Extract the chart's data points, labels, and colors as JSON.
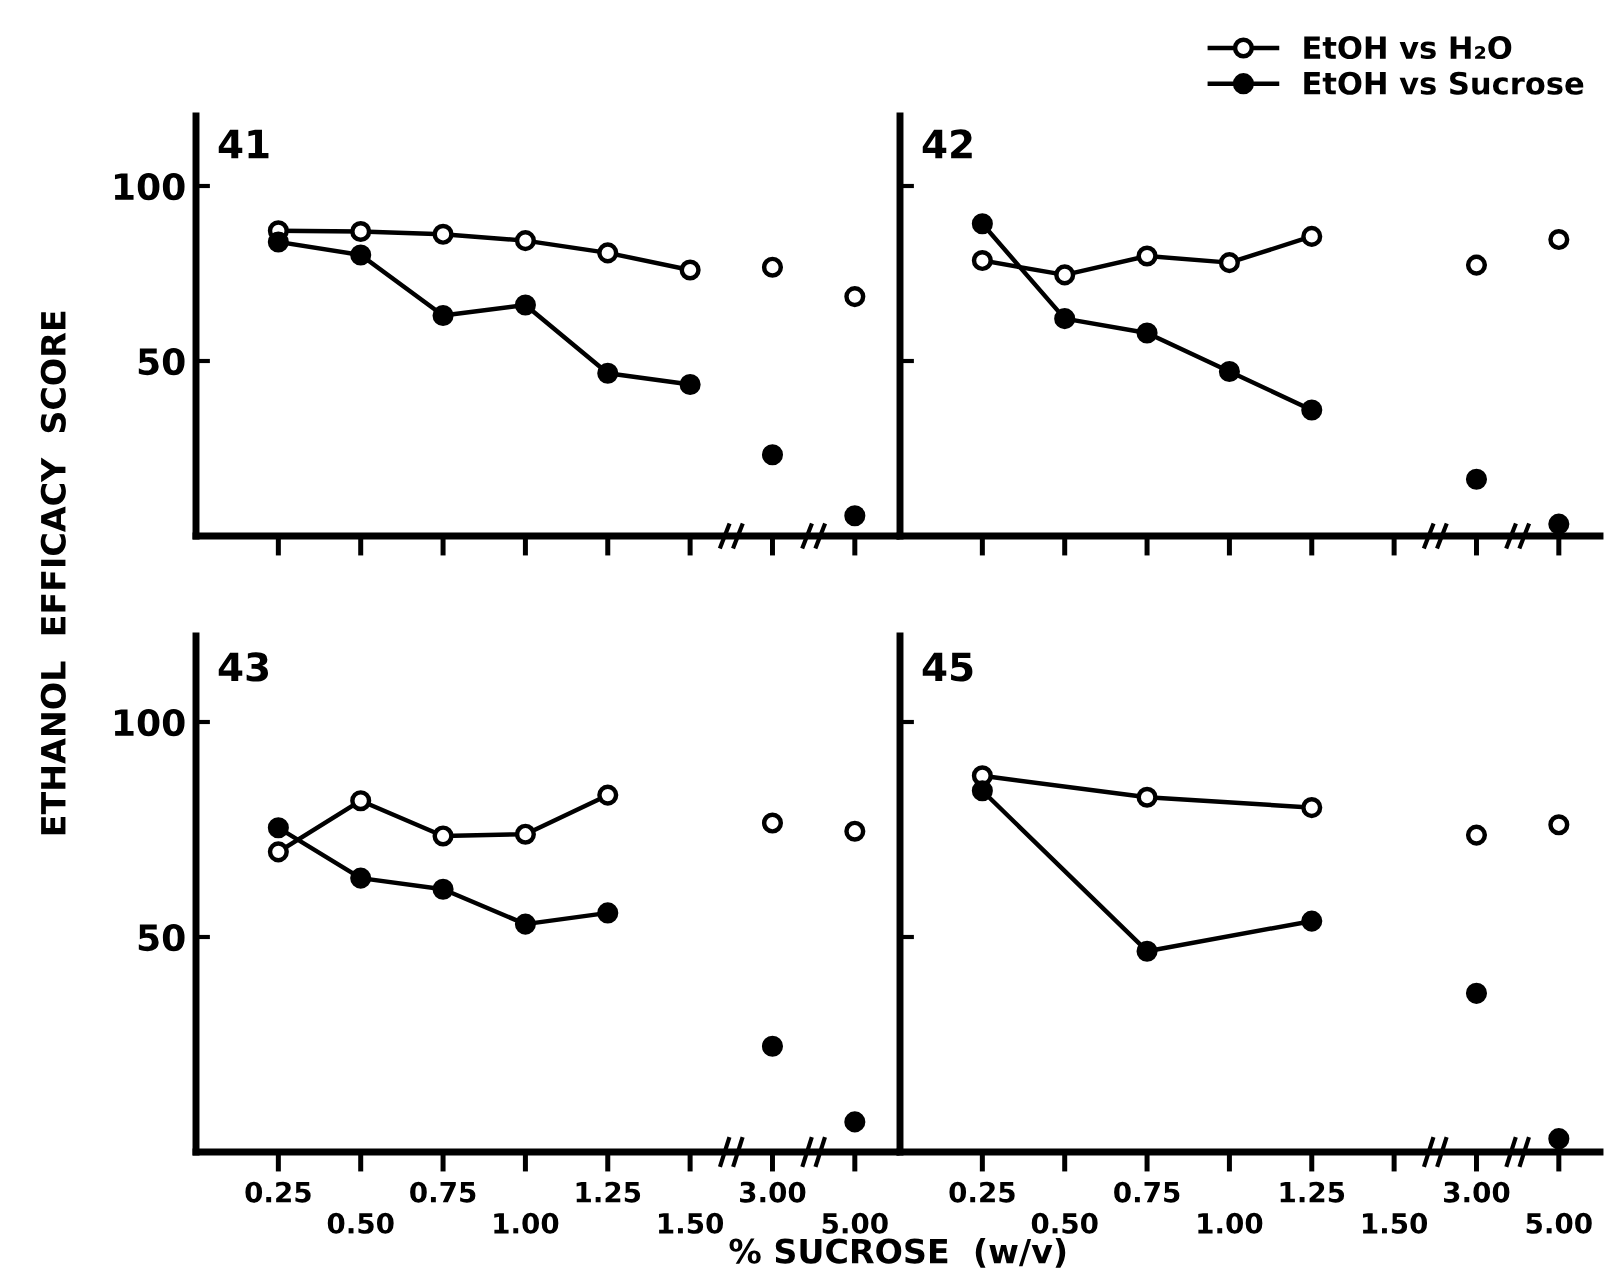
{
  "chart_data": [
    {
      "type": "line",
      "title": "41",
      "ylabel": "ETHANOL  EFFICACY  SCORE",
      "categories": [
        "0.25",
        "0.50",
        "0.75",
        "1.00",
        "1.25",
        "1.50",
        "3.00",
        "5.00"
      ],
      "ylim": [
        0,
        120
      ],
      "yticks": [
        50,
        100
      ],
      "tick_labels": "y",
      "marker": "circle",
      "grid": false,
      "series": [
        {
          "color": "#000000",
          "colors": [
            "#ffffff",
            "#ffffff",
            "#ffffff",
            "#ffffff",
            "#ffffff",
            "#ffffff"
          ],
          "x": [
            "0.25",
            "0.50",
            "0.75",
            "1.00",
            "1.25",
            "1.50"
          ],
          "values": [
            87.2,
            87,
            86.2,
            84.4,
            80.9,
            76.0
          ]
        },
        {
          "color": "#000000",
          "colors": [
            "#000000",
            "#000000",
            "#000000",
            "#000000",
            "#000000",
            "#000000"
          ],
          "x": [
            "0.25",
            "0.50",
            "0.75",
            "1.00",
            "1.25",
            "1.50"
          ],
          "values": [
            84,
            80.3,
            63,
            66,
            46.5,
            43.3
          ]
        },
        {
          "type": "scatter",
          "color": "#000000",
          "colors": [
            "#ffffff",
            "#ffffff"
          ],
          "x": [
            "3.00",
            "5.00"
          ],
          "values": [
            76.8,
            68.4
          ]
        },
        {
          "type": "scatter",
          "color": "#000000",
          "colors": [
            "#000000",
            "#000000"
          ],
          "x": [
            "3.00",
            "5.00"
          ],
          "values": [
            23.2,
            5.8
          ]
        }
      ]
    },
    {
      "type": "line",
      "title": "42",
      "categories": [
        "0.25",
        "0.50",
        "0.75",
        "1.00",
        "1.25",
        "1.50",
        "3.00",
        "5.00"
      ],
      "ylim": [
        0,
        120
      ],
      "yticks": [
        50,
        100
      ],
      "tick_labels": false,
      "marker": "circle",
      "grid": false,
      "legend": "top right",
      "series": [
        {
          "name": "EtOH vs H₂O",
          "color": "#000000",
          "colors": [
            "#ffffff",
            "#ffffff",
            "#ffffff",
            "#ffffff",
            "#ffffff"
          ],
          "x": [
            "0.25",
            "0.50",
            "0.75",
            "1.00",
            "1.25"
          ],
          "values": [
            78.7,
            74.6,
            80,
            78.1,
            85.6
          ]
        },
        {
          "name": "EtOH vs Sucrose",
          "color": "#000000",
          "colors": [
            "#000000",
            "#000000",
            "#000000",
            "#000000",
            "#000000"
          ],
          "x": [
            "0.25",
            "0.50",
            "0.75",
            "1.00",
            "1.25"
          ],
          "values": [
            89.2,
            62.1,
            58,
            47,
            36
          ]
        },
        {
          "type": "scatter",
          "color": "#000000",
          "colors": [
            "#ffffff",
            "#ffffff"
          ],
          "x": [
            "3.00",
            "5.00"
          ],
          "values": [
            77.4,
            84.7
          ]
        },
        {
          "type": "scatter",
          "color": "#000000",
          "colors": [
            "#000000",
            "#000000"
          ],
          "x": [
            "3.00",
            "5.00"
          ],
          "values": [
            16.2,
            3.4
          ]
        }
      ]
    },
    {
      "type": "line",
      "title": "43",
      "xlabel": "% SUCROSE  (w/v)",
      "categories": [
        "0.25",
        "0.50",
        "0.75",
        "1.00",
        "1.25",
        "1.50",
        "3.00",
        "5.00"
      ],
      "ylim": [
        0,
        120
      ],
      "yticks": [
        50,
        100
      ],
      "marker": "circle",
      "grid": false,
      "series": [
        {
          "color": "#000000",
          "colors": [
            "#ffffff",
            "#ffffff",
            "#ffffff",
            "#ffffff",
            "#ffffff"
          ],
          "x": [
            "0.25",
            "0.50",
            "0.75",
            "1.00",
            "1.25"
          ],
          "values": [
            69.8,
            81.7,
            73.5,
            73.9,
            83
          ]
        },
        {
          "color": "#000000",
          "colors": [
            "#000000",
            "#000000",
            "#000000",
            "#000000",
            "#000000"
          ],
          "x": [
            "0.25",
            "0.50",
            "0.75",
            "1.00",
            "1.25"
          ],
          "values": [
            75.4,
            63.7,
            61.1,
            53,
            55.6
          ]
        },
        {
          "type": "scatter",
          "color": "#000000",
          "colors": [
            "#ffffff",
            "#ffffff"
          ],
          "x": [
            "3.00",
            "5.00"
          ],
          "values": [
            76.5,
            74.6
          ]
        },
        {
          "type": "scatter",
          "color": "#000000",
          "colors": [
            "#000000",
            "#000000"
          ],
          "x": [
            "3.00",
            "5.00"
          ],
          "values": [
            24.6,
            7.0
          ]
        }
      ]
    },
    {
      "type": "line",
      "title": "45",
      "categories": [
        "0.25",
        "0.50",
        "0.75",
        "1.00",
        "1.25",
        "1.50",
        "3.00",
        "5.00"
      ],
      "ylim": [
        0,
        120
      ],
      "yticks": [
        50,
        100
      ],
      "tick_labels": "x",
      "marker": "circle",
      "grid": false,
      "series": [
        {
          "color": "#000000",
          "colors": [
            "#ffffff",
            "#ffffff",
            "#ffffff"
          ],
          "x": [
            "0.25",
            "0.75",
            "1.25"
          ],
          "values": [
            87.5,
            82.5,
            80.1
          ]
        },
        {
          "color": "#000000",
          "colors": [
            "#000000",
            "#000000",
            "#000000"
          ],
          "x": [
            "0.25",
            "0.75",
            "1.25"
          ],
          "values": [
            84,
            46.7,
            53.7
          ]
        },
        {
          "type": "scatter",
          "color": "#000000",
          "colors": [
            "#ffffff",
            "#ffffff"
          ],
          "x": [
            "3.00",
            "5.00"
          ],
          "values": [
            73.7,
            76.1
          ]
        },
        {
          "type": "scatter",
          "color": "#000000",
          "colors": [
            "#000000",
            "#000000"
          ],
          "x": [
            "3.00",
            "5.00"
          ],
          "values": [
            36.9,
            3.1
          ]
        }
      ]
    }
  ]
}
